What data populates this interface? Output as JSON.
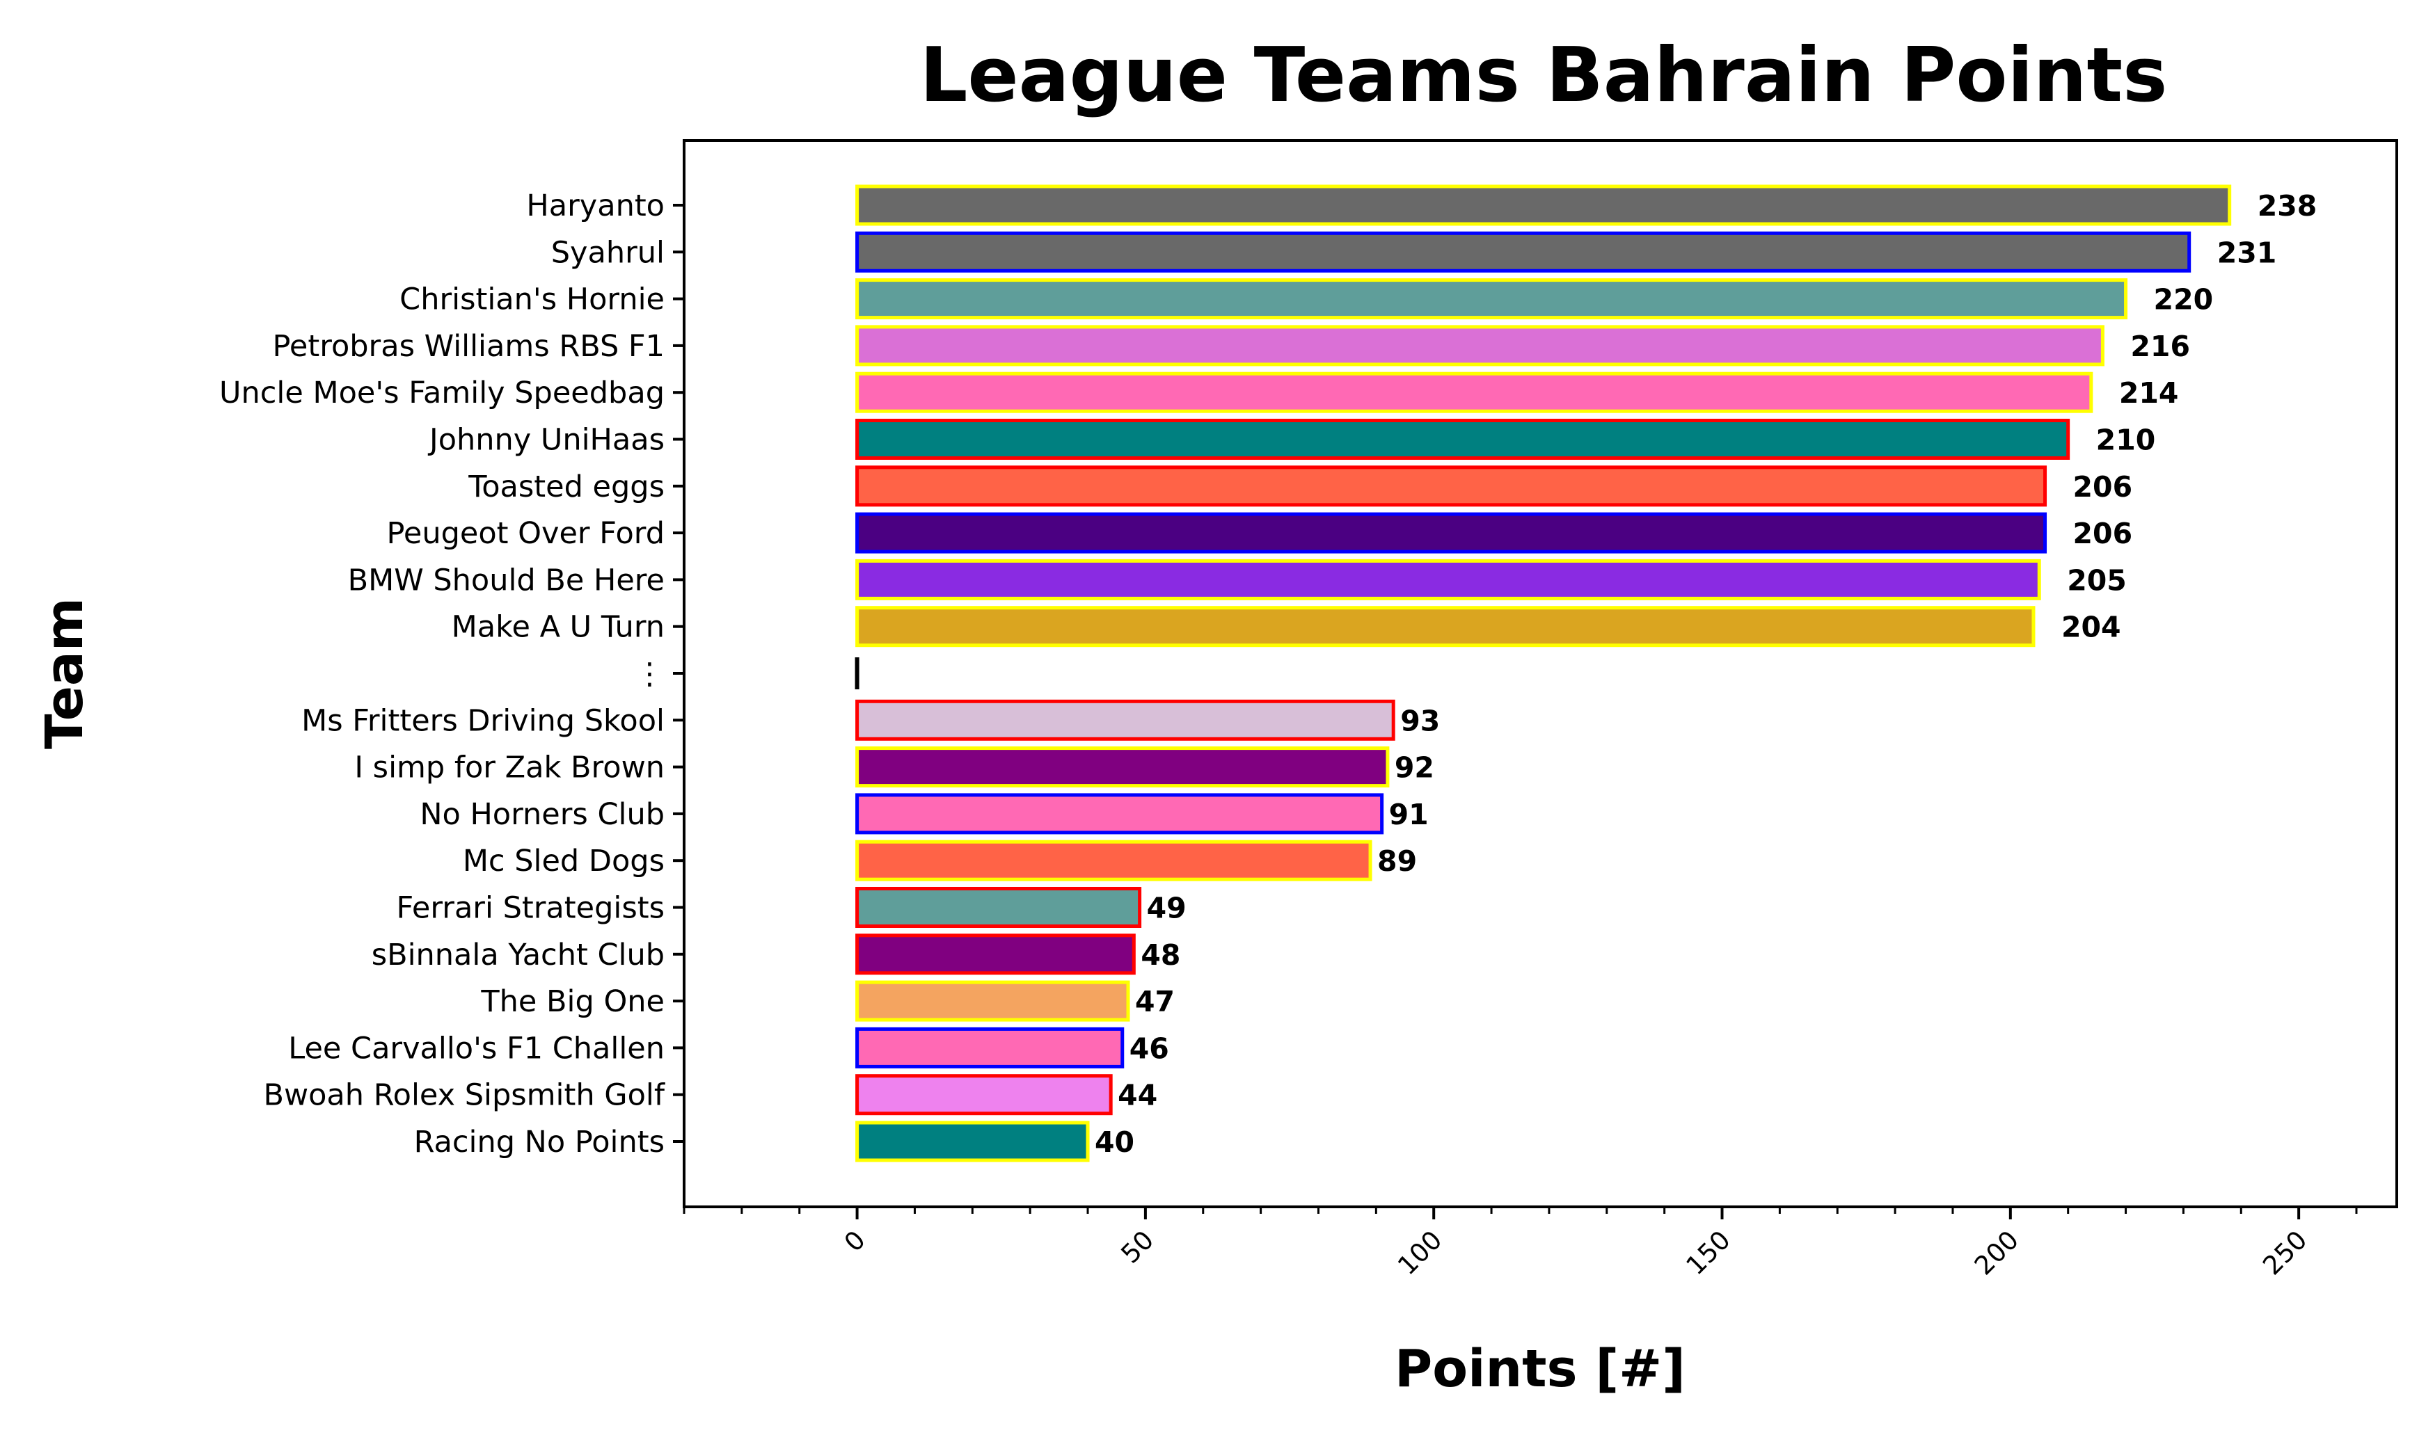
{
  "chart_data": {
    "type": "bar",
    "orientation": "horizontal",
    "title": "League Teams Bahrain Points",
    "xlabel": "Points [#]",
    "ylabel": "Team",
    "xlim": [
      -30,
      267
    ],
    "xticks": [
      "0",
      "50",
      "100",
      "150",
      "200",
      "250"
    ],
    "grid": false,
    "categories": [
      "Haryanto",
      "Syahrul",
      "Christian's Hornie",
      "Petrobras Williams RBS F1",
      "Uncle Moe's Family Speedbag",
      "Johnny UniHaas",
      "Toasted eggs",
      "Peugeot Over Ford",
      "BMW Should Be Here",
      "Make A U Turn",
      "⋮",
      "Ms Fritters Driving Skool",
      "I simp for Zak Brown",
      "No Horners Club",
      "Mc Sled Dogs",
      "Ferrari Strategists",
      "sBinnala Yacht Club",
      "The Big One",
      "Lee Carvallo's F1 Challen",
      "Bwoah Rolex Sipsmith Golf",
      "Racing No Points"
    ],
    "values": [
      238,
      231,
      220,
      216,
      214,
      210,
      206,
      206,
      205,
      204,
      0,
      93,
      92,
      91,
      89,
      49,
      48,
      47,
      46,
      44,
      40
    ],
    "value_labels": [
      "238",
      "231",
      "220",
      "216",
      "214",
      "210",
      "206",
      "206",
      "205",
      "204",
      "",
      "93",
      "92",
      "91",
      "89",
      "49",
      "48",
      "47",
      "46",
      "44",
      "40"
    ],
    "fill_colors": [
      "#696969",
      "#696969",
      "#5f9e9a",
      "#da70d6",
      "#ff69b4",
      "#008080",
      "#ff6347",
      "#4b0082",
      "#8a2be2",
      "#daa520",
      "#000000",
      "#d8bfd8",
      "#800080",
      "#ff69b4",
      "#ff6347",
      "#5f9e9a",
      "#800080",
      "#f4a460",
      "#ff69b4",
      "#ee82ee",
      "#008080"
    ],
    "edge_colors": [
      "#ffff00",
      "#0000ff",
      "#ffff00",
      "#ffff00",
      "#ffff00",
      "#ff0000",
      "#ff0000",
      "#0000ff",
      "#ffff00",
      "#ffff00",
      "#000000",
      "#ff0000",
      "#ffff00",
      "#0000ff",
      "#ffff00",
      "#ff0000",
      "#ff0000",
      "#ffff00",
      "#0000ff",
      "#ff0000",
      "#ffff00"
    ]
  }
}
